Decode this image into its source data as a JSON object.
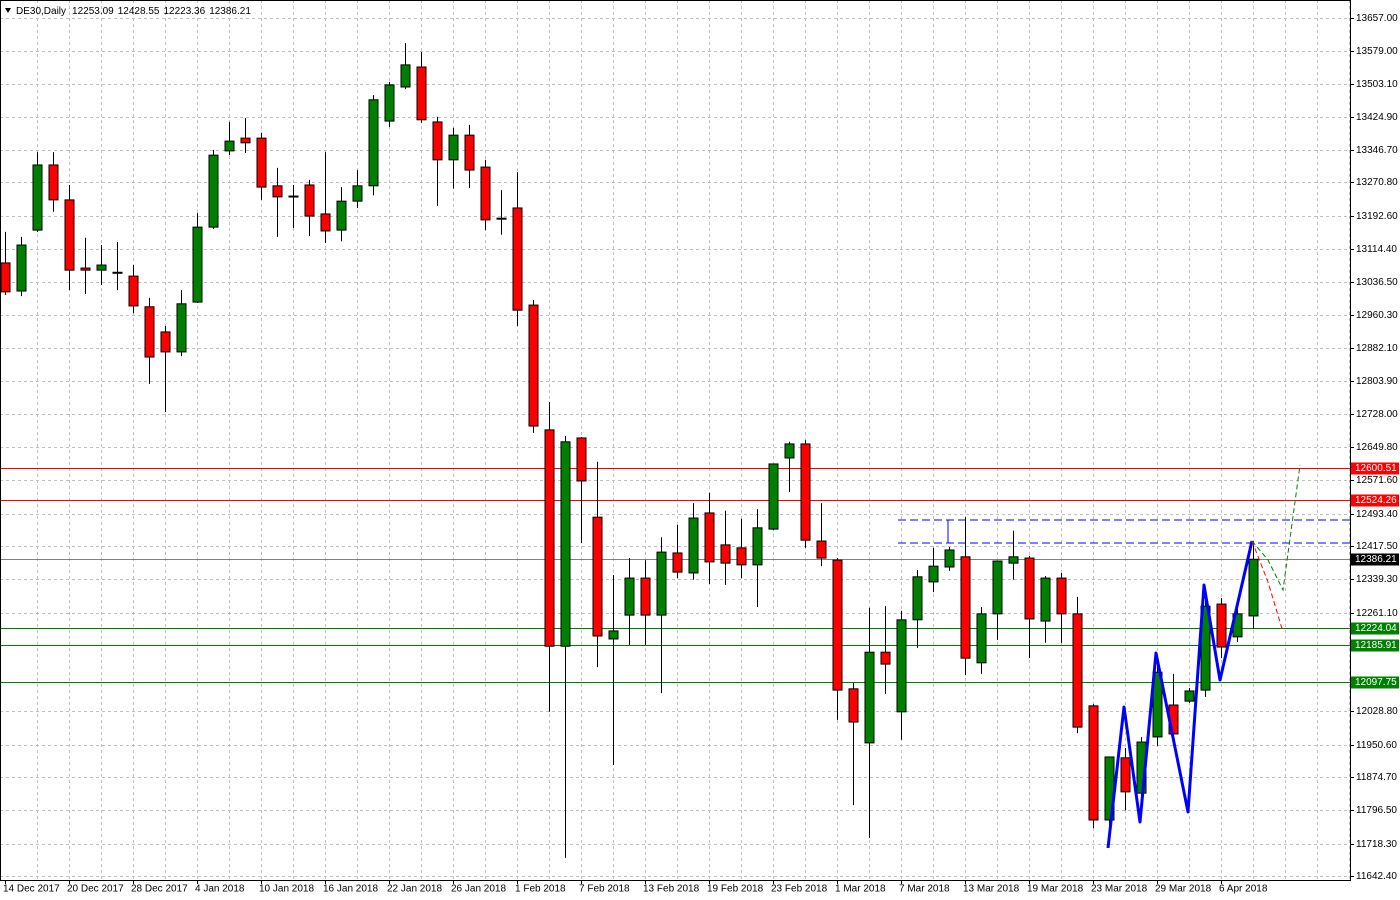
{
  "chart_data": {
    "type": "candlestick",
    "title": "DE30,Daily",
    "up_color": "#008000",
    "down_color": "#ff0000",
    "grid": true,
    "ylim": [
      11633.1,
      13699.3
    ],
    "yticks": [
      {
        "value": 13657,
        "label": "13657.00"
      },
      {
        "value": 13579,
        "label": "13579.00"
      },
      {
        "value": 13503.1,
        "label": "13503.10"
      },
      {
        "value": 13424.9,
        "label": "13424.90"
      },
      {
        "value": 13346.7,
        "label": "13346.70"
      },
      {
        "value": 13270.8,
        "label": "13270.80"
      },
      {
        "value": 13192.6,
        "label": "13192.60"
      },
      {
        "value": 13114.4,
        "label": "13114.40"
      },
      {
        "value": 13036.5,
        "label": "13036.50"
      },
      {
        "value": 12960.3,
        "label": "12960.30"
      },
      {
        "value": 12882.1,
        "label": "12882.10"
      },
      {
        "value": 12803.9,
        "label": "12803.90"
      },
      {
        "value": 12728,
        "label": "12728.00"
      },
      {
        "value": 12649.8,
        "label": "12649.80"
      },
      {
        "value": 12571.6,
        "label": "12571.60"
      },
      {
        "value": 12493.4,
        "label": "12493.40"
      },
      {
        "value": 12417.5,
        "label": "12417.50"
      },
      {
        "value": 12339.3,
        "label": "12339.30"
      },
      {
        "value": 12261.1,
        "label": "12261.10"
      },
      {
        "value": 12028.8,
        "label": "12028.80"
      },
      {
        "value": 11950.6,
        "label": "11950.60"
      },
      {
        "value": 11874.7,
        "label": "11874.70"
      },
      {
        "value": 11796.5,
        "label": "11796.50"
      },
      {
        "value": 11718.3,
        "label": "11718.30"
      },
      {
        "value": 11642.4,
        "label": "11642.40"
      }
    ],
    "categories": [
      "14 Dec 2017",
      null,
      null,
      null,
      "20 Dec 2017",
      null,
      null,
      null,
      "28 Dec 2017",
      null,
      null,
      null,
      "4 Jan 2018",
      null,
      null,
      null,
      "10 Jan 2018",
      null,
      null,
      null,
      "16 Jan 2018",
      null,
      null,
      null,
      "22 Jan 2018",
      null,
      null,
      null,
      "26 Jan 2018",
      null,
      null,
      null,
      "1 Feb 2018",
      null,
      null,
      null,
      "7 Feb 2018",
      null,
      null,
      null,
      "13 Feb 2018",
      null,
      null,
      null,
      "19 Feb 2018",
      null,
      null,
      null,
      "23 Feb 2018",
      null,
      null,
      null,
      "1 Mar 2018",
      null,
      null,
      null,
      "7 Mar 2018",
      null,
      null,
      null,
      "13 Mar 2018",
      null,
      null,
      null,
      "19 Mar 2018",
      null,
      null,
      null,
      "23 Mar 2018",
      null,
      null,
      null,
      "29 Mar 2018",
      null,
      null,
      null,
      "6 Apr 2018",
      null,
      null
    ],
    "open": [
      13082,
      13016,
      13159,
      13312,
      13230,
      13070,
      13065,
      13060,
      13051,
      12979,
      12920,
      12873,
      12990,
      13166,
      13345,
      13375,
      13375,
      13263,
      13239,
      13265,
      13197,
      13159,
      13227,
      13263,
      13415,
      13495,
      13542,
      13413,
      13324,
      13382,
      13307,
      13187,
      13211,
      12983,
      12690,
      12182,
      12671,
      12485,
      12199,
      12255,
      12342,
      12255,
      12401,
      12354,
      12495,
      12420,
      12413,
      12373,
      12457,
      12624,
      12657,
      12429,
      12384,
      12082,
      11955,
      12168,
      12028,
      12244,
      12333,
      12368,
      12392,
      12143,
      12258,
      12377,
      12389,
      12241,
      12342,
      12258,
      12042,
      11774,
      11920,
      11837,
      11969,
      12044,
      12053,
      12079,
      12281,
      12204,
      12253.09
    ],
    "high": [
      13155,
      13143,
      13342,
      13342,
      13265,
      13141,
      13124,
      13131,
      13077,
      13000,
      12934,
      13018,
      13199,
      13347,
      13413,
      13422,
      13387,
      13305,
      13265,
      13277,
      13342,
      13260,
      13300,
      13476,
      13507,
      13598,
      13577,
      13425,
      13399,
      13406,
      13324,
      13253,
      13295,
      12995,
      12755,
      12676,
      12673,
      12615,
      12349,
      12389,
      12384,
      12438,
      12467,
      12518,
      12542,
      12500,
      12481,
      12504,
      12611,
      12662,
      12666,
      12518,
      12389,
      12096,
      12272,
      12276,
      12265,
      12361,
      12413,
      12415,
      12485,
      12274,
      12383,
      12453,
      12394,
      12347,
      12354,
      12298,
      12046,
      11923,
      11943,
      11969,
      12161,
      12117,
      12084,
      12295,
      12295,
      12288,
      12428.55
    ],
    "low": [
      13007,
      13004,
      13155,
      13202,
      13018,
      13009,
      13030,
      13018,
      12964,
      12798,
      12732,
      12863,
      12988,
      13162,
      13335,
      13340,
      13230,
      13143,
      13164,
      13145,
      13129,
      13133,
      13211,
      13241,
      13401,
      13490,
      13411,
      13216,
      13256,
      13258,
      13159,
      13148,
      12934,
      12683,
      12028,
      11685,
      12424,
      12133,
      11903,
      12185,
      12185,
      12072,
      12342,
      12338,
      12328,
      12326,
      12342,
      12274,
      12455,
      12544,
      12413,
      12370,
      12009,
      11809,
      11732,
      12070,
      11962,
      12178,
      12309,
      12359,
      12114,
      12117,
      12197,
      12338,
      12154,
      12190,
      12190,
      11978,
      11755,
      11760,
      11797,
      11793,
      11948,
      11971,
      12049,
      12063,
      12154,
      12192,
      12223.36
    ],
    "close": [
      13014,
      13124,
      13312,
      13230,
      13065,
      13065,
      13077,
      13058,
      12981,
      12861,
      12873,
      12986,
      13166,
      13335,
      13368,
      13364,
      13260,
      13237,
      13237,
      13192,
      13157,
      13227,
      13263,
      13465,
      13500,
      13547,
      13418,
      13324,
      13382,
      13300,
      13183,
      13185,
      12971,
      12699,
      12182,
      12662,
      12570,
      12206,
      12218,
      12342,
      12255,
      12403,
      12356,
      12483,
      12380,
      12377,
      12373,
      12460,
      12610,
      12657,
      12431,
      12389,
      12079,
      12004,
      12168,
      12140,
      12244,
      12345,
      12370,
      12408,
      12154,
      12258,
      12382,
      12392,
      12246,
      12342,
      12258,
      11992,
      11774,
      11922,
      11840,
      11957,
      12121,
      11976,
      12077,
      12276,
      12180,
      12258,
      12386.21
    ],
    "levels": [
      {
        "value": 12600.51,
        "color": "#ff0000"
      },
      {
        "value": 12524.26,
        "color": "#ff0000"
      },
      {
        "value": 12224.04,
        "color": "#008000"
      },
      {
        "value": 12185.91,
        "color": "#008000"
      },
      {
        "value": 12097.75,
        "color": "#008000"
      }
    ]
  }
}
